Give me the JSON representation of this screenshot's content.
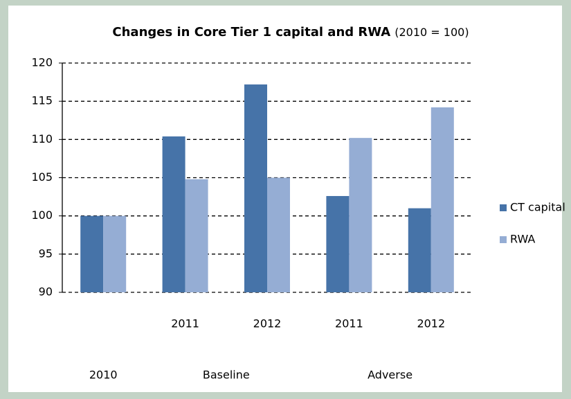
{
  "chart_data": {
    "type": "bar",
    "title": "Changes in Core Tier 1 capital and RWA",
    "subtitle": "(2010 = 100)",
    "groups": [
      {
        "label": "2010",
        "categories": [
          null
        ]
      },
      {
        "label": "Baseline",
        "categories": [
          "2011",
          "2012"
        ]
      },
      {
        "label": "Adverse",
        "categories": [
          "2011",
          "2012"
        ]
      }
    ],
    "series": [
      {
        "name": "CT capital",
        "color": "#4673a8",
        "values": [
          100,
          110.4,
          117.2,
          102.6,
          101.0
        ]
      },
      {
        "name": "RWA",
        "color": "#95add4",
        "values": [
          100,
          104.8,
          105.0,
          110.2,
          114.2
        ]
      }
    ],
    "ylim": [
      90,
      120
    ],
    "yticks": [
      90,
      95,
      100,
      105,
      110,
      115,
      120
    ],
    "grid": true,
    "legend": "right"
  }
}
